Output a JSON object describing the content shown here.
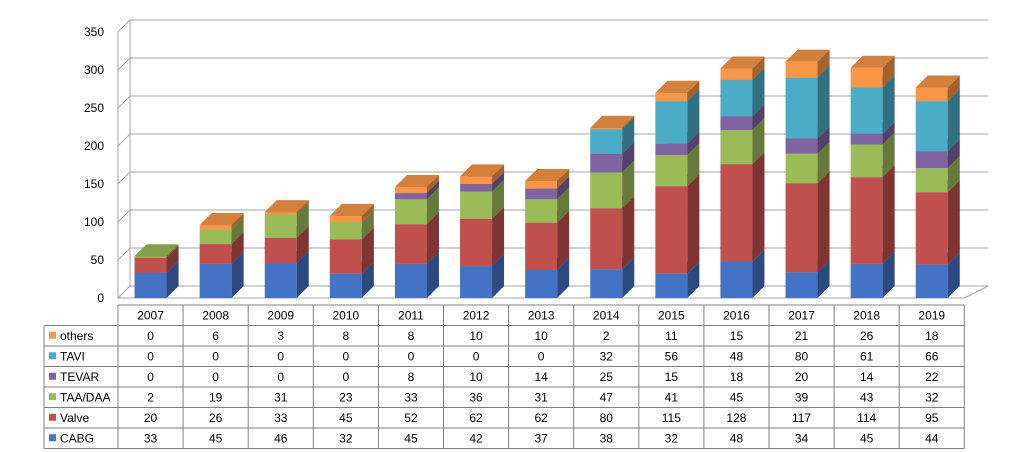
{
  "chart_data": {
    "type": "bar",
    "stacked": true,
    "three_d": true,
    "title": "",
    "xlabel": "",
    "ylabel": "",
    "ylim": [
      0,
      350
    ],
    "yticks": [
      0,
      50,
      100,
      150,
      200,
      250,
      300,
      350
    ],
    "grid": true,
    "legend": "data-table-left",
    "categories": [
      "2007",
      "2008",
      "2009",
      "2010",
      "2011",
      "2012",
      "2013",
      "2014",
      "2015",
      "2016",
      "2017",
      "2018",
      "2019"
    ],
    "series": [
      {
        "name": "CABG",
        "color": "#4472C4",
        "values": [
          33,
          45,
          46,
          32,
          45,
          42,
          37,
          38,
          32,
          48,
          34,
          45,
          44
        ]
      },
      {
        "name": "Valve",
        "color": "#C0504D",
        "values": [
          20,
          26,
          33,
          45,
          52,
          62,
          62,
          80,
          115,
          128,
          117,
          114,
          95
        ]
      },
      {
        "name": "TAA/DAA",
        "color": "#9BBB59",
        "values": [
          2,
          19,
          31,
          23,
          33,
          36,
          31,
          47,
          41,
          45,
          39,
          43,
          32
        ]
      },
      {
        "name": "TEVAR",
        "color": "#8064A2",
        "values": [
          0,
          0,
          0,
          0,
          8,
          10,
          14,
          25,
          15,
          18,
          20,
          14,
          22
        ]
      },
      {
        "name": "TAVI",
        "color": "#4BACC6",
        "values": [
          0,
          0,
          0,
          0,
          0,
          0,
          0,
          32,
          56,
          48,
          80,
          61,
          66
        ]
      },
      {
        "name": "others",
        "color": "#F79646",
        "values": [
          0,
          6,
          3,
          8,
          8,
          10,
          10,
          2,
          11,
          15,
          21,
          26,
          18
        ]
      }
    ],
    "table_row_order": [
      "others",
      "TAVI",
      "TEVAR",
      "TAA/DAA",
      "Valve",
      "CABG"
    ]
  }
}
